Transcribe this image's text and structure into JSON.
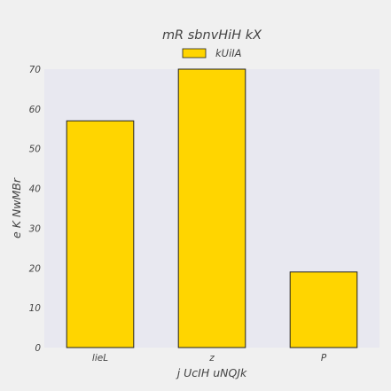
{
  "chart_data": {
    "type": "bar",
    "title": "mR sbnvHiH kX",
    "xlabel": "j UcIH uNQJk",
    "ylabel": "e K   NwMBr",
    "categories": [
      "lieL",
      "z",
      "P"
    ],
    "series": [
      {
        "name": "kUiIA",
        "values": [
          57,
          70,
          19
        ]
      }
    ],
    "ylim": [
      0,
      70
    ],
    "yticks": [
      0,
      10,
      20,
      30,
      40,
      50,
      60,
      70
    ],
    "grid": false,
    "legend_position": "top-center",
    "colors": {
      "background": "#f0f0f0",
      "plot_area": "#e8e8f0",
      "bar_fill": "#ffd500",
      "bar_edge": "#222222",
      "text": "#444444"
    }
  }
}
